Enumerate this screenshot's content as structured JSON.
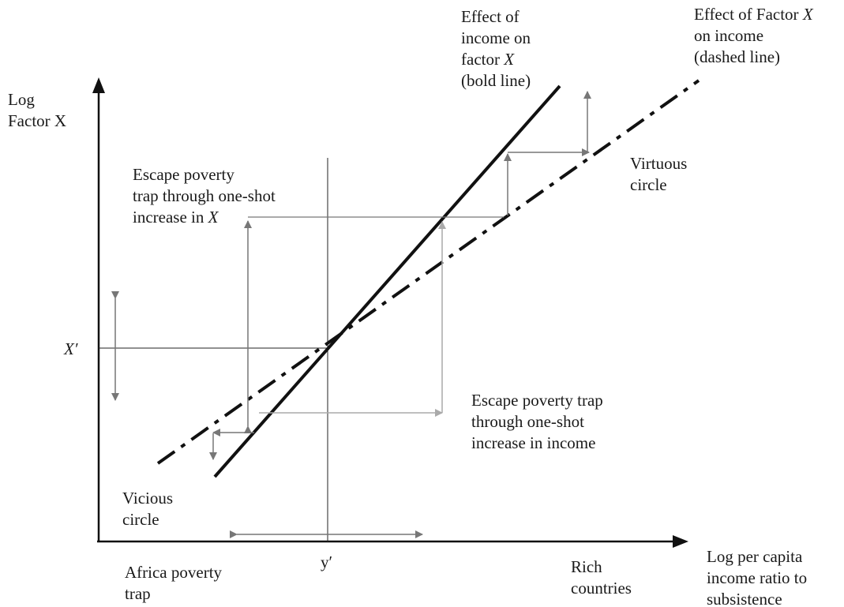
{
  "axes": {
    "y_label": [
      "Log",
      "Factor X"
    ],
    "x_label": [
      "Log per capita",
      "income ratio to",
      "subsistence"
    ]
  },
  "ticks": {
    "x_prime": "X′",
    "y_prime": "y′"
  },
  "curves": {
    "bold": {
      "label": [
        "Effect of",
        "income on",
        "factor X",
        "(bold line)"
      ],
      "style": "solid"
    },
    "dashed": {
      "label": [
        "Effect of Factor X",
        "on income",
        "(dashed line)"
      ],
      "style": "dash-dot"
    }
  },
  "annotations": {
    "escape_x": [
      "Escape poverty",
      "trap through one-shot",
      "increase in X"
    ],
    "escape_income": [
      "Escape poverty trap",
      "through one-shot",
      "increase in income"
    ],
    "virtuous": [
      "Virtuous",
      "circle"
    ],
    "vicious": [
      "Vicious",
      "circle"
    ],
    "africa": [
      "Africa poverty",
      "trap"
    ],
    "rich": [
      "Rich",
      "countries"
    ]
  },
  "colors": {
    "ink": "#111111",
    "arrow_gray": "#777777",
    "arrow_light": "#aaaaaa"
  }
}
